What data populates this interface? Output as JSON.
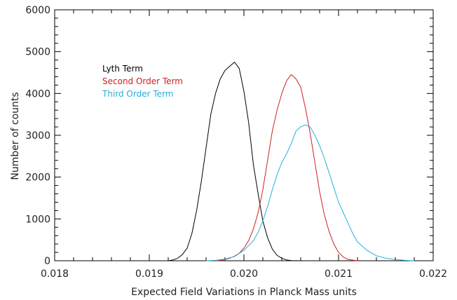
{
  "chart_data": {
    "type": "line",
    "title": "",
    "xlabel": "Expected Field Variations in Planck Mass units",
    "ylabel": "Number of counts",
    "xlim": [
      0.018,
      0.022
    ],
    "ylim": [
      0,
      6000
    ],
    "x_ticks": [
      "0.018",
      "0.019",
      "0.020",
      "0.021",
      "0.022"
    ],
    "y_ticks": [
      "0",
      "1000",
      "2000",
      "3000",
      "4000",
      "5000",
      "6000"
    ],
    "grid": false,
    "legend_position": "top-left",
    "series": [
      {
        "name": "Lyth Term",
        "color": "#000000",
        "x": [
          0.0192,
          0.01925,
          0.0193,
          0.01935,
          0.0194,
          0.01945,
          0.0195,
          0.01955,
          0.0196,
          0.01965,
          0.0197,
          0.01975,
          0.0198,
          0.01985,
          0.0199,
          0.01995,
          0.02,
          0.02005,
          0.0201,
          0.02015,
          0.0202,
          0.02025,
          0.0203,
          0.02035,
          0.0204,
          0.02045,
          0.0205,
          0.0206
        ],
        "values": [
          0,
          20,
          60,
          150,
          300,
          650,
          1200,
          1900,
          2700,
          3500,
          4000,
          4350,
          4550,
          4650,
          4750,
          4600,
          4050,
          3300,
          2300,
          1600,
          950,
          550,
          280,
          130,
          60,
          20,
          5,
          0
        ]
      },
      {
        "name": "Second Order Term",
        "color": "#cc2020",
        "x": [
          0.0197,
          0.01975,
          0.0198,
          0.01985,
          0.0199,
          0.01995,
          0.02,
          0.02005,
          0.0201,
          0.02015,
          0.0202,
          0.02025,
          0.0203,
          0.02035,
          0.0204,
          0.02045,
          0.0205,
          0.02055,
          0.0206,
          0.02065,
          0.0207,
          0.02075,
          0.0208,
          0.02085,
          0.0209,
          0.02095,
          0.021,
          0.02105,
          0.0211,
          0.0212
        ],
        "values": [
          0,
          10,
          30,
          60,
          110,
          180,
          300,
          480,
          760,
          1150,
          1700,
          2400,
          3100,
          3600,
          4000,
          4300,
          4450,
          4350,
          4150,
          3650,
          3050,
          2350,
          1650,
          1100,
          700,
          400,
          200,
          90,
          30,
          0
        ]
      },
      {
        "name": "Third Order Term",
        "color": "#29b0d9",
        "x": [
          0.0196,
          0.0197,
          0.0198,
          0.0199,
          0.02,
          0.0201,
          0.02015,
          0.0202,
          0.02025,
          0.0203,
          0.02035,
          0.0204,
          0.02045,
          0.0205,
          0.02055,
          0.0206,
          0.02065,
          0.0207,
          0.02075,
          0.0208,
          0.02085,
          0.0209,
          0.02095,
          0.021,
          0.02105,
          0.0211,
          0.02115,
          0.0212,
          0.0213,
          0.0214,
          0.0215,
          0.0216,
          0.0217,
          0.0218
        ],
        "values": [
          0,
          10,
          40,
          100,
          250,
          480,
          680,
          950,
          1300,
          1700,
          2050,
          2350,
          2550,
          2800,
          3100,
          3200,
          3250,
          3200,
          3000,
          2750,
          2450,
          2100,
          1750,
          1400,
          1150,
          900,
          650,
          450,
          250,
          120,
          60,
          30,
          10,
          0
        ]
      }
    ]
  }
}
